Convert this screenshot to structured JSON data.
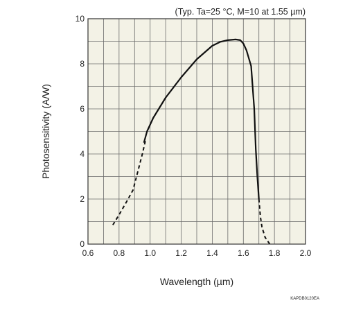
{
  "chart_data": {
    "type": "line",
    "title": "",
    "annotation": "(Typ. Ta=25 °C, M=10 at 1.55 µm)",
    "xlabel": "Wavelength (µm)",
    "ylabel": "Photosensitivity (A/W)",
    "code": "KAPDB0120EA",
    "xlim": [
      0.6,
      2.0
    ],
    "ylim": [
      0,
      10
    ],
    "x_ticks": [
      "0.6",
      "0.8",
      "1.0",
      "1.2",
      "1.4",
      "1.6",
      "1.8",
      "2.0"
    ],
    "y_ticks": [
      "0",
      "2",
      "4",
      "6",
      "8",
      "10"
    ],
    "grid": true,
    "background_color": "#f3f2e6",
    "line_color": "#111111",
    "series": [
      {
        "style": "dashed",
        "x": [
          0.76,
          0.8,
          0.85,
          0.89,
          0.92,
          0.95,
          0.97
        ],
        "y": [
          0.85,
          1.3,
          1.9,
          2.4,
          3.2,
          4.0,
          4.6
        ]
      },
      {
        "style": "solid",
        "x": [
          0.96,
          0.98,
          1.02,
          1.1,
          1.2,
          1.3,
          1.4,
          1.45,
          1.5,
          1.55,
          1.58,
          1.6,
          1.62,
          1.65,
          1.67,
          1.68,
          1.69,
          1.7
        ],
        "y": [
          4.5,
          5.0,
          5.6,
          6.5,
          7.4,
          8.2,
          8.8,
          8.97,
          9.05,
          9.08,
          9.05,
          8.9,
          8.6,
          7.9,
          6.0,
          4.2,
          3.0,
          2.0
        ]
      },
      {
        "style": "dashed",
        "x": [
          1.7,
          1.71,
          1.72,
          1.74,
          1.76,
          1.77
        ],
        "y": [
          2.0,
          1.2,
          0.75,
          0.3,
          0.1,
          0.0
        ]
      }
    ]
  }
}
